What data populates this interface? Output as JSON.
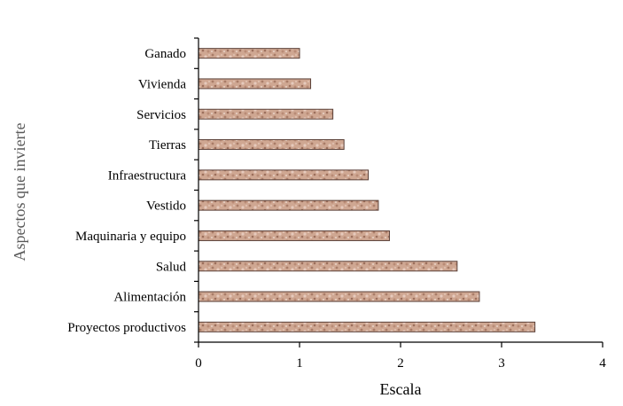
{
  "chart_data": {
    "type": "bar",
    "orientation": "horizontal",
    "categories": [
      "Ganado",
      "Vivienda",
      "Servicios",
      "Tierras",
      "Infraestructura",
      "Vestido",
      "Maquinaria y equipo",
      "Salud",
      "Alimentación ",
      "Proyectos productivos"
    ],
    "values": [
      1.0,
      1.11,
      1.33,
      1.44,
      1.68,
      1.78,
      1.89,
      2.56,
      2.78,
      3.33
    ],
    "xlabel": "Escala",
    "ylabel": "Aspectos que invierte",
    "xlim": [
      0,
      4
    ],
    "xticks": [
      "0",
      "1",
      "2",
      "3",
      "4"
    ],
    "grid": false,
    "bar_color": "#c9a08c",
    "bar_outline": "#5a4038"
  }
}
